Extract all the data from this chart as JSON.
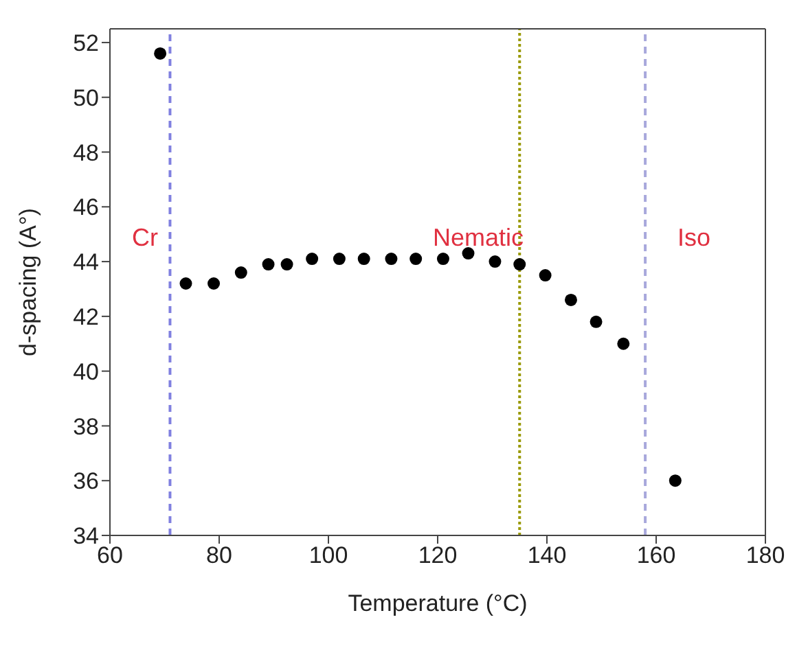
{
  "chart_data": {
    "type": "scatter",
    "xlabel": "Temperature (°C)",
    "ylabel": "d-spacing (A°)",
    "x": [
      69.2,
      73.9,
      79,
      84,
      89,
      92.4,
      97,
      102,
      106.5,
      111.5,
      116,
      121,
      125.6,
      130.5,
      135,
      139.7,
      144.4,
      149,
      154,
      163.5
    ],
    "series": [
      {
        "color": "#000000",
        "values": [
          51.6,
          43.2,
          43.2,
          43.6,
          43.9,
          43.9,
          44.1,
          44.1,
          44.1,
          44.1,
          44.1,
          44.1,
          44.3,
          44.0,
          43.9,
          43.5,
          42.6,
          41.8,
          41.0,
          36.0
        ]
      }
    ],
    "xlim": [
      60,
      180
    ],
    "xticks": [
      60,
      80,
      100,
      120,
      140,
      160,
      180
    ],
    "ylim": [
      34,
      52.5
    ],
    "yticks": [
      34,
      36,
      38,
      40,
      42,
      44,
      46,
      48,
      50,
      52
    ],
    "marker": "circle",
    "legend": false,
    "ref_lines": [
      {
        "axis": "x",
        "value": 71,
        "color": "#8080e0",
        "line_style": "dashed"
      },
      {
        "axis": "x",
        "value": 135,
        "color": "#999900",
        "line_style": "dotted"
      },
      {
        "axis": "x",
        "value": 158,
        "color": "#a8a8dc",
        "line_style": "dashed"
      }
    ],
    "annotations": [
      "Cr",
      "Nematic",
      "Iso"
    ]
  }
}
